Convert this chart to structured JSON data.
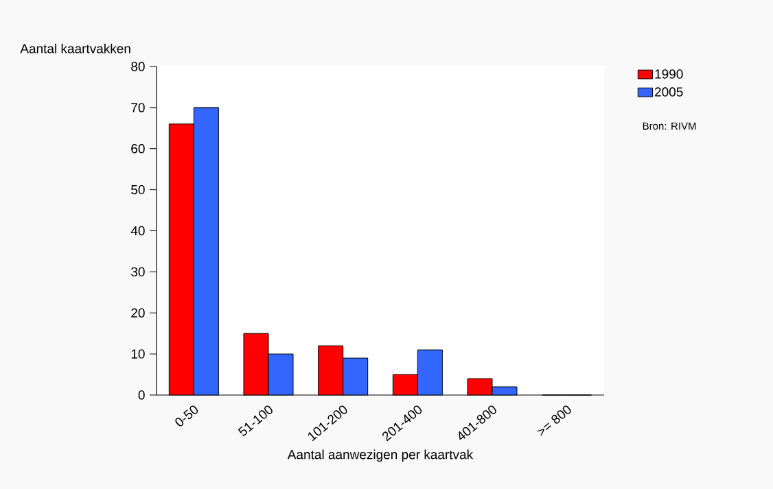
{
  "chart_data": {
    "type": "bar",
    "xlabel": "Aantal aanwezigen per kaartvak",
    "ylabel": "Aantal kaartvakken",
    "categories": [
      "0-50",
      "51-100",
      "101-200",
      "201-400",
      "401-800",
      ">= 800"
    ],
    "series": [
      {
        "name": "1990",
        "color": "#ff0000",
        "values": [
          66,
          15,
          12,
          5,
          4,
          0
        ]
      },
      {
        "name": "2005",
        "color": "#3366ff",
        "values": [
          70,
          10,
          9,
          11,
          2,
          0
        ]
      }
    ],
    "ylim": [
      0,
      80
    ],
    "yticks": [
      0,
      10,
      20,
      30,
      40,
      50,
      60,
      70,
      80
    ],
    "grid": false,
    "legend": "top right",
    "annotations": [
      "Bron: RIVM"
    ]
  }
}
